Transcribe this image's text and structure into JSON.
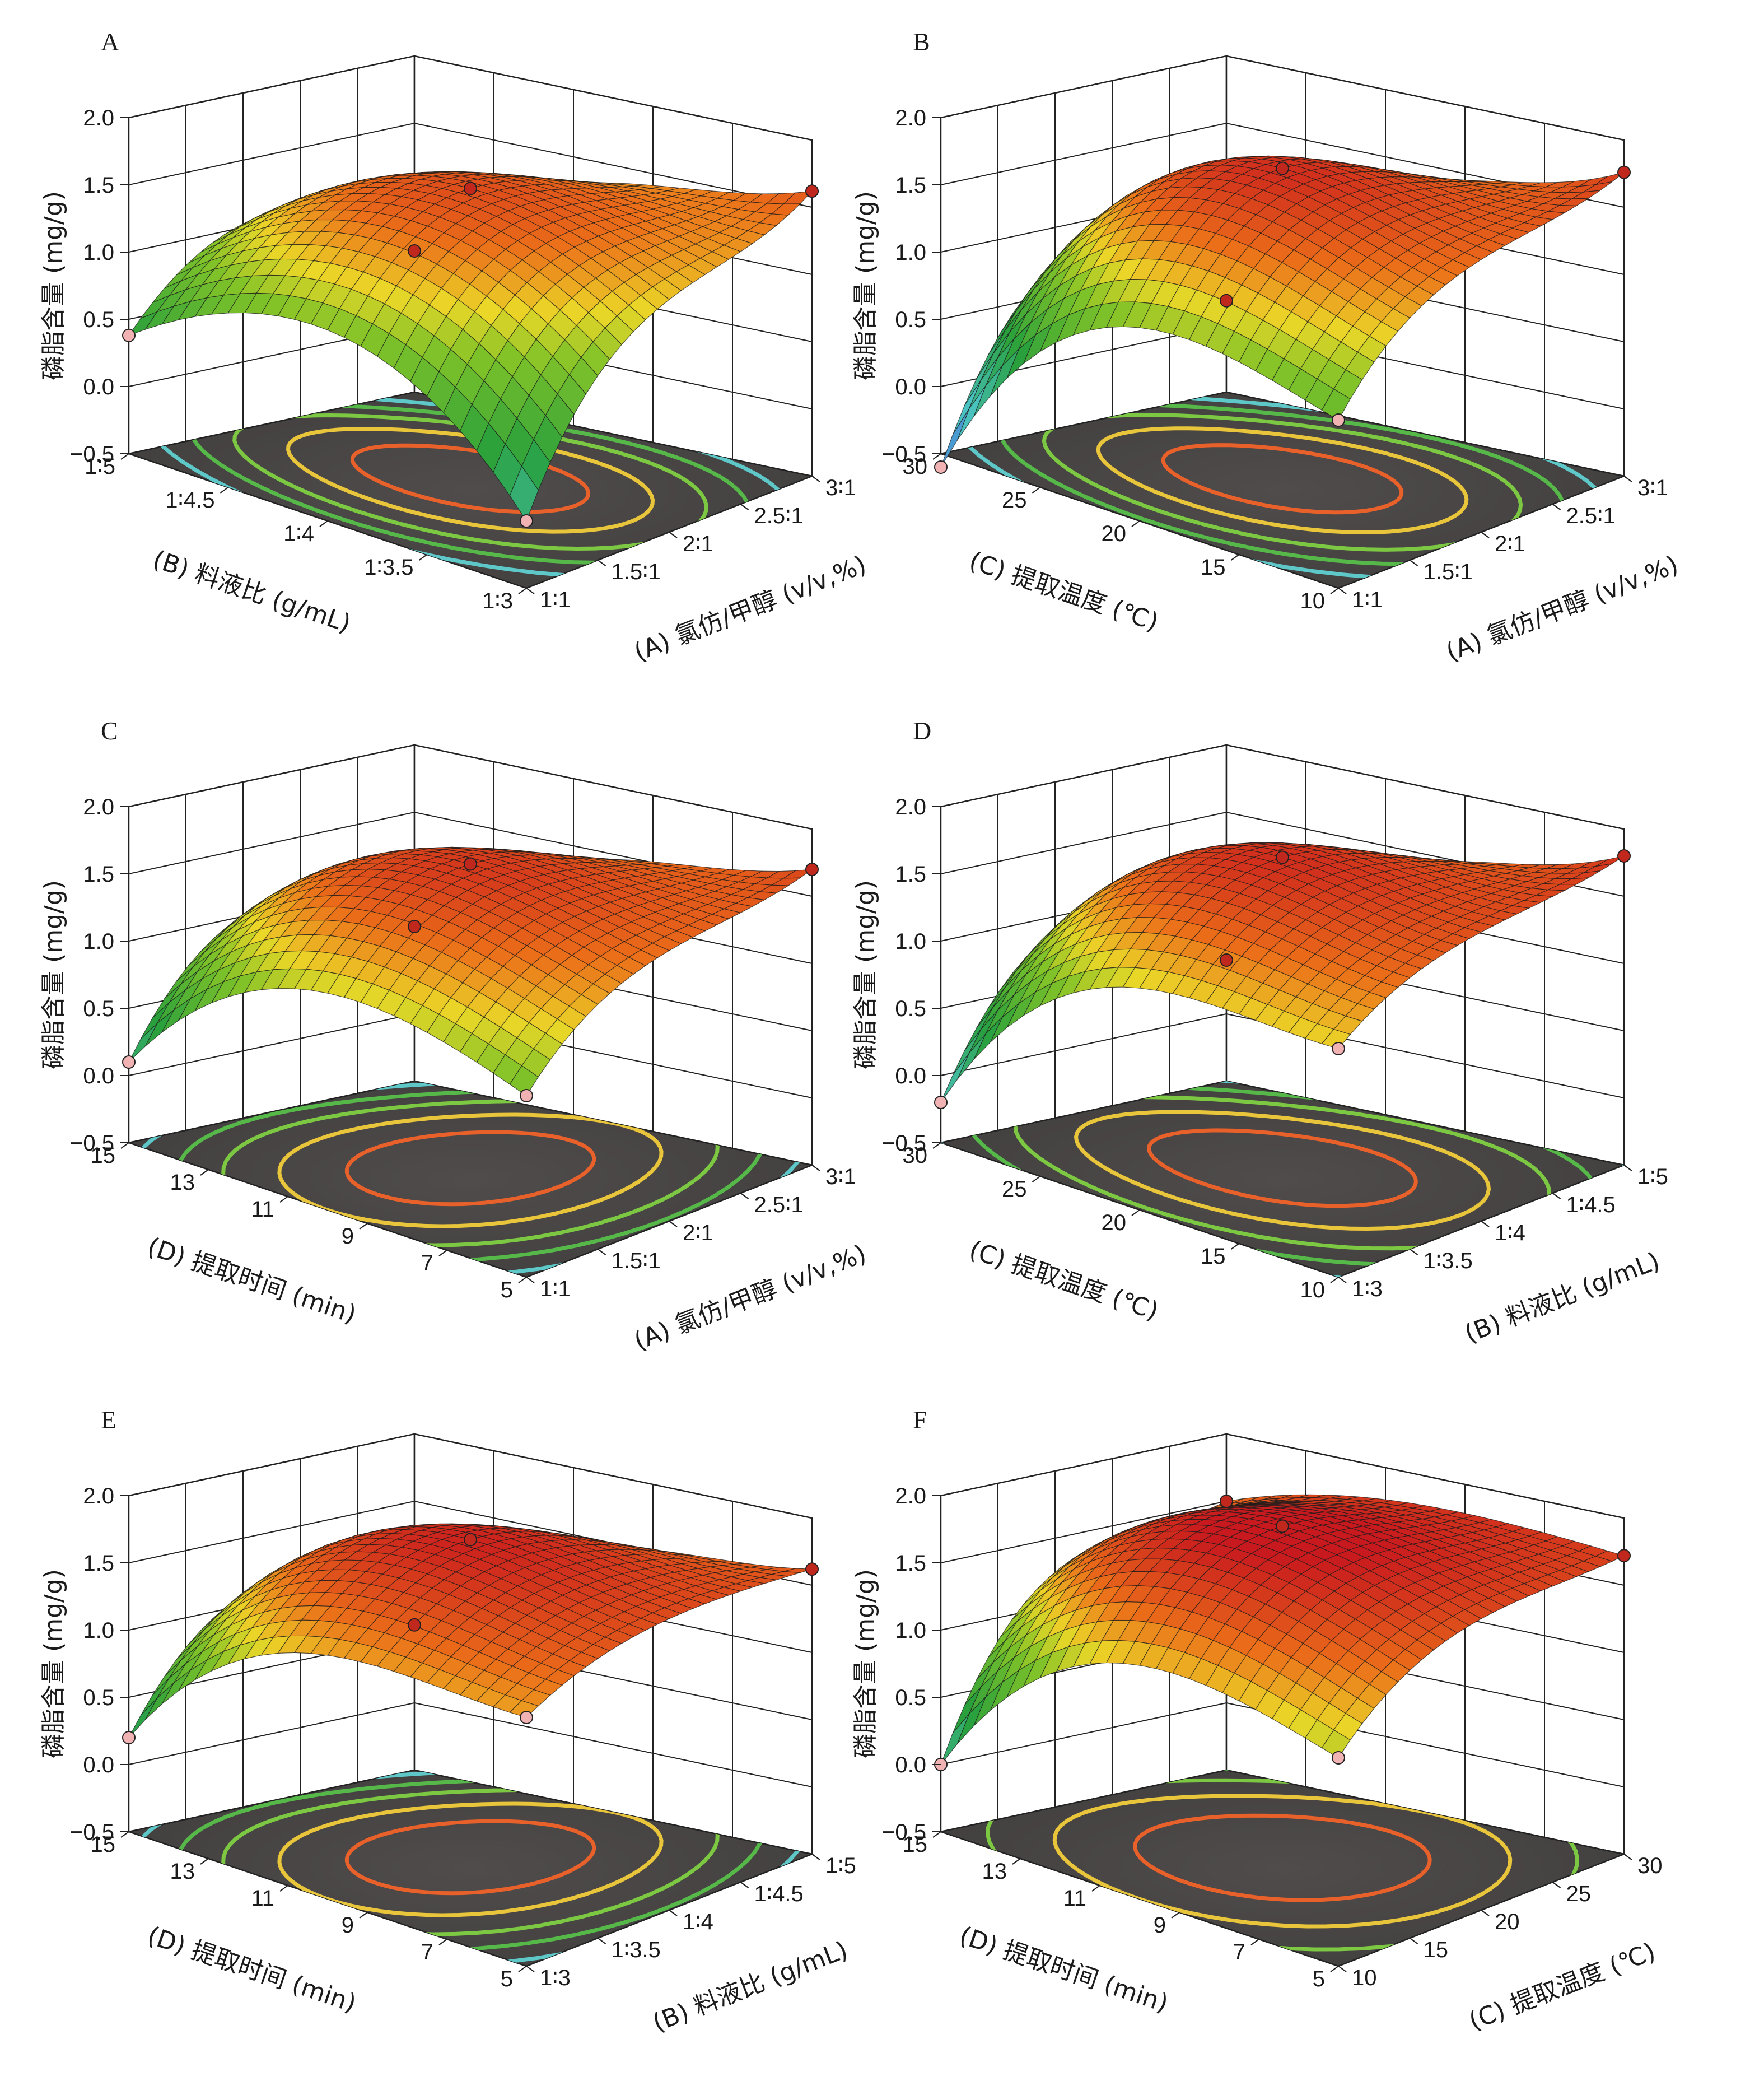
{
  "figure": {
    "panel_count": 6
  },
  "chart_data": [
    {
      "panel": "A",
      "type": "surface3d",
      "z_label": "磷脂含量 (mg/g)",
      "z_ticks": [
        "−0.5",
        "0.0",
        "0.5",
        "1.0",
        "1.5",
        "2.0"
      ],
      "z_range": [
        -0.5,
        2.0
      ],
      "x_label": "(A) 氯仿/甲醇 (v/v,%)",
      "x_ticks": [
        "1∶1",
        "1.5∶1",
        "2∶1",
        "2.5∶1",
        "3∶1"
      ],
      "y_label": "(B) 料液比 (g/mL)",
      "y_ticks": [
        "1∶3",
        "1∶3.5",
        "1∶4",
        "1∶4.5",
        "1∶5"
      ],
      "peak": 1.65,
      "corners": [
        0.38,
        0.0,
        1.62,
        0.55
      ],
      "shape": 2.0,
      "contour_rx": 0.95,
      "contour_ry": 1.15
    },
    {
      "panel": "B",
      "type": "surface3d",
      "z_label": "磷脂含量 (mg/g)",
      "z_ticks": [
        "−0.5",
        "0.0",
        "0.5",
        "1.0",
        "1.5",
        "2.0"
      ],
      "z_range": [
        -0.5,
        2.0
      ],
      "x_label": "(A) 氯仿/甲醇 (v/v,%)",
      "x_ticks": [
        "1∶1",
        "1.5∶1",
        "2∶1",
        "2.5∶1",
        "3∶1"
      ],
      "y_label": "(C) 提取温度 (℃)",
      "y_ticks": [
        "10",
        "15",
        "20",
        "25",
        "30"
      ],
      "peak": 1.8,
      "corners": [
        -0.6,
        0.75,
        1.76,
        0.18
      ],
      "shape": 2.0,
      "contour_rx": 0.95,
      "contour_ry": 1.2
    },
    {
      "panel": "C",
      "type": "surface3d",
      "z_label": "磷脂含量 (mg/g)",
      "z_ticks": [
        "−0.5",
        "0.0",
        "0.5",
        "1.0",
        "1.5",
        "2.0"
      ],
      "z_range": [
        -0.5,
        2.0
      ],
      "x_label": "(A) 氯仿/甲醇 (v/v,%)",
      "x_ticks": [
        "1∶1",
        "1.5∶1",
        "2∶1",
        "2.5∶1",
        "3∶1"
      ],
      "y_label": "(D) 提取时间 (min)",
      "y_ticks": [
        "5",
        "7",
        "9",
        "11",
        "13",
        "15"
      ],
      "peak": 1.75,
      "corners": [
        0.1,
        0.85,
        1.7,
        0.65
      ],
      "shape": 2.2,
      "contour_rx": 0.75,
      "contour_ry": 1.9
    },
    {
      "panel": "D",
      "type": "surface3d",
      "z_label": "磷脂含量 (mg/g)",
      "z_ticks": [
        "−0.5",
        "0.0",
        "0.5",
        "1.0",
        "1.5",
        "2.0"
      ],
      "z_range": [
        -0.5,
        2.0
      ],
      "x_label": "(B) 料液比 (g/mL)",
      "x_ticks": [
        "1∶3",
        "1∶3.5",
        "1∶4",
        "1∶4.5",
        "1∶5"
      ],
      "y_label": "(C) 提取温度 (℃)",
      "y_ticks": [
        "10",
        "15",
        "20",
        "25",
        "30"
      ],
      "peak": 1.8,
      "corners": [
        -0.2,
        1.2,
        1.8,
        0.4
      ],
      "shape": 1.8,
      "contour_rx": 1.05,
      "contour_ry": 1.4
    },
    {
      "panel": "E",
      "type": "surface3d",
      "z_label": "磷脂含量 (mg/g)",
      "z_ticks": [
        "−0.5",
        "0.0",
        "0.5",
        "1.0",
        "1.5",
        "2.0"
      ],
      "z_range": [
        -0.5,
        2.0
      ],
      "x_label": "(B) 料液比 (g/mL)",
      "x_ticks": [
        "1∶3",
        "1∶3.5",
        "1∶4",
        "1∶4.5",
        "1∶5"
      ],
      "y_label": "(D) 提取时间 (min)",
      "y_ticks": [
        "5",
        "7",
        "9",
        "11",
        "13",
        "15"
      ],
      "peak": 1.85,
      "corners": [
        0.2,
        1.35,
        1.62,
        0.58
      ],
      "shape": 2.3,
      "contour_rx": 0.75,
      "contour_ry": 1.9
    },
    {
      "panel": "F",
      "type": "surface3d",
      "z_label": "磷脂含量 (mg/g)",
      "z_ticks": [
        "−0.5",
        "0.0",
        "0.5",
        "1.0",
        "1.5",
        "2.0"
      ],
      "z_range": [
        -0.5,
        2.0
      ],
      "x_label": "(C) 提取温度 (℃)",
      "x_ticks": [
        "10",
        "15",
        "20",
        "25",
        "30"
      ],
      "y_label": "(D) 提取时间 (min)",
      "y_ticks": [
        "5",
        "7",
        "9",
        "11",
        "13",
        "15"
      ],
      "peak": 1.95,
      "corners": [
        0.0,
        1.05,
        1.72,
        1.5
      ],
      "shape": 2.5,
      "contour_rx": 1.05,
      "contour_ry": 1.9
    }
  ]
}
